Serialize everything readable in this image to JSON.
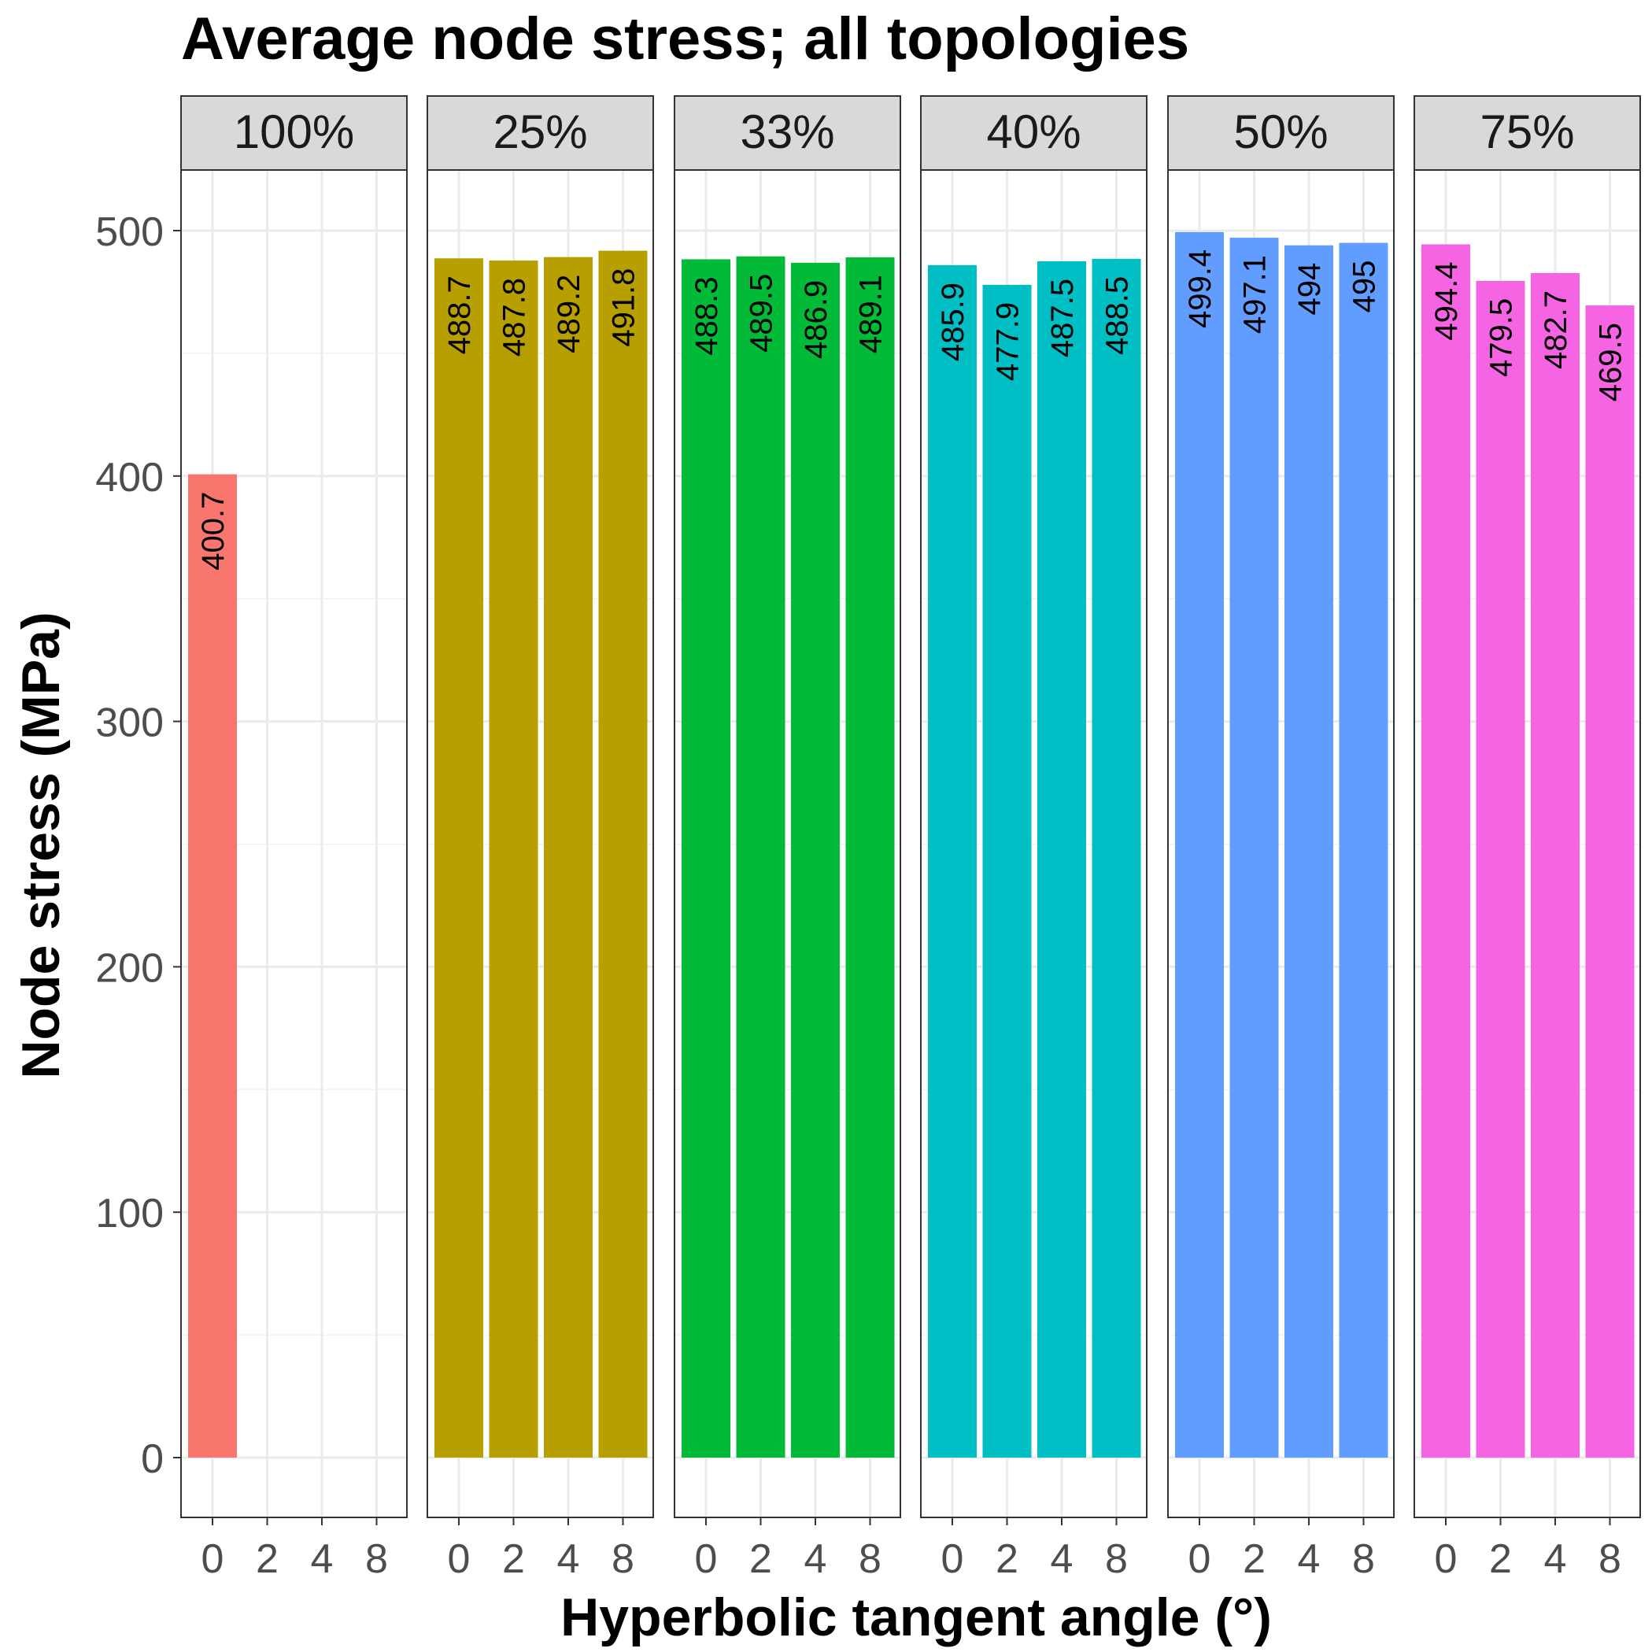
{
  "chart_data": {
    "type": "bar",
    "title": "Average node stress; all topologies",
    "xlabel": "Hyperbolic tangent angle (°)",
    "ylabel": "Node stress (MPa)",
    "ylim": [
      0,
      500
    ],
    "yticks": [
      "0",
      "100",
      "200",
      "300",
      "400",
      "500"
    ],
    "categories": [
      "0",
      "2",
      "4",
      "8"
    ],
    "grid": true,
    "facets": [
      {
        "name": "100%",
        "color": "#F8766D",
        "values": [
          400.7,
          null,
          null,
          null
        ],
        "labels": [
          "400.7",
          "",
          "",
          ""
        ]
      },
      {
        "name": "25%",
        "color": "#B79F00",
        "values": [
          488.7,
          487.8,
          489.2,
          491.8
        ],
        "labels": [
          "488.7",
          "487.8",
          "489.2",
          "491.8"
        ]
      },
      {
        "name": "33%",
        "color": "#00BA38",
        "values": [
          488.3,
          489.5,
          486.9,
          489.1
        ],
        "labels": [
          "488.3",
          "489.5",
          "486.9",
          "489.1"
        ]
      },
      {
        "name": "40%",
        "color": "#00BFC4",
        "values": [
          485.9,
          477.9,
          487.5,
          488.5
        ],
        "labels": [
          "485.9",
          "477.9",
          "487.5",
          "488.5"
        ]
      },
      {
        "name": "50%",
        "color": "#619CFF",
        "values": [
          499.4,
          497.1,
          494,
          495
        ],
        "labels": [
          "499.4",
          "497.1",
          "494",
          "495"
        ]
      },
      {
        "name": "75%",
        "color": "#F564E3",
        "values": [
          494.4,
          479.5,
          482.7,
          469.5
        ],
        "labels": [
          "494.4",
          "479.5",
          "482.7",
          "469.5"
        ]
      }
    ]
  }
}
